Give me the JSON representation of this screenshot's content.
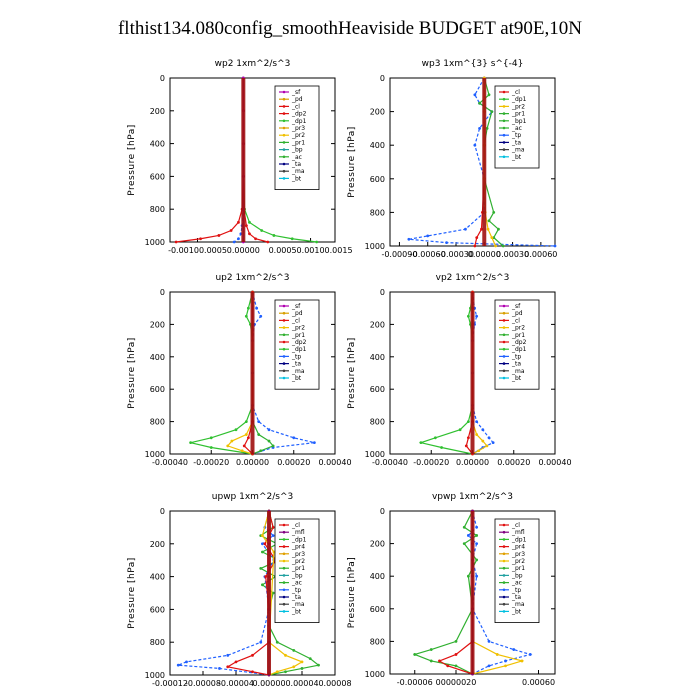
{
  "page_title": "flthist134.080config_smoothHeaviside  BUDGET at90E,10N",
  "colors": {
    "sf": "#b000b0",
    "pd": "#d8a000",
    "cl": "#e01010",
    "dp2": "#e01010",
    "dp1": "#30c030",
    "pr3": "#e0a000",
    "pr2": "#f0c000",
    "pr1": "#30b030",
    "bp": "#20a0a0",
    "bp1": "#30b030",
    "ac": "#30b030",
    "tp": "#2060ff",
    "ta": "#000080",
    "ma": "#404040",
    "bt": "#00c0e0",
    "mfl": "#800080",
    "pr4": "#e01010",
    "sum": "#a01010"
  },
  "chart_data": [
    {
      "type": "line",
      "title": "wp2   1xm^2/s^3",
      "ylabel": "Pressure [hPa]",
      "ylim": [
        1000,
        0
      ],
      "yticks": [
        0,
        200,
        400,
        600,
        800,
        1000
      ],
      "xlim": [
        -0.0012,
        0.0015
      ],
      "xtick_labels": [
        "-0.00100.0005",
        "0.00000",
        "0.00050.00100.0015"
      ],
      "xtick_values": [
        -0.00075,
        0.0,
        0.0011
      ],
      "legend": [
        "_sf",
        "_pd",
        "_cl",
        "_dp2",
        "_dp1",
        "_pr3",
        "_pr2",
        "_pr1",
        "_bp",
        "_ac",
        "_ta",
        "_ma",
        "_bt"
      ],
      "legend_place": "top-right",
      "series": [
        {
          "key": "dp1",
          "p": [
            0,
            200,
            400,
            600,
            800,
            880,
            930,
            960,
            980,
            1000
          ],
          "v": [
            0,
            0,
            0,
            0,
            2e-05,
            0.0001,
            0.0003,
            0.0005,
            0.0008,
            0.0012
          ]
        },
        {
          "key": "cl",
          "p": [
            0,
            200,
            400,
            600,
            800,
            880,
            930,
            960,
            980,
            1000
          ],
          "v": [
            0,
            0,
            0,
            0,
            -2e-05,
            -8e-05,
            -0.0002,
            -0.0004,
            -0.0007,
            -0.0011
          ]
        },
        {
          "key": "dp2",
          "p": [
            0,
            200,
            400,
            600,
            800,
            900,
            950,
            980,
            1000
          ],
          "v": [
            0,
            0,
            0,
            0,
            1e-05,
            5e-05,
            0.0001,
            0.0002,
            0.0004
          ]
        },
        {
          "key": "tp",
          "p": [
            0,
            200,
            400,
            600,
            800,
            900,
            950,
            980,
            1000
          ],
          "v": [
            0,
            0,
            0,
            0,
            0,
            -2e-05,
            -4e-05,
            -8e-05,
            -0.00015
          ]
        },
        {
          "key": "sf",
          "p": [
            0,
            200,
            400,
            600,
            800,
            1000
          ],
          "v": [
            0,
            0,
            0,
            0,
            0,
            0
          ]
        }
      ]
    },
    {
      "type": "line",
      "title": "wp3   1xm^{3} s^{-4}",
      "ylabel": "Pressure [hPa]",
      "ylim": [
        1000,
        0
      ],
      "yticks": [
        0,
        200,
        400,
        600,
        800,
        1000
      ],
      "xlim": [
        -0.001,
        0.00075
      ],
      "xtick_labels": [
        "-0.00090",
        "-0.00060",
        "-0.00030",
        "0.00000",
        "0.00030",
        "0.00060"
      ],
      "xtick_values": [
        -0.0009,
        -0.0006,
        -0.0003,
        0.0,
        0.0003,
        0.0006
      ],
      "legend": [
        "_cl",
        "_dp1",
        "_pr2",
        "_pr1",
        "_bp1",
        "_ac",
        "_tp",
        "_ta",
        "_ma",
        "_bt"
      ],
      "legend_place": "top-right",
      "series": [
        {
          "key": "tp",
          "p": [
            0,
            100,
            150,
            200,
            300,
            400,
            600,
            800,
            900,
            940,
            960,
            980,
            1000
          ],
          "v": [
            0,
            -0.0001,
            -5e-05,
            8e-05,
            -5e-05,
            -0.0001,
            0,
            0,
            -0.0002,
            -0.0006,
            -0.0008,
            -0.0004,
            0.00075
          ]
        },
        {
          "key": "ac",
          "p": [
            0,
            100,
            150,
            200,
            300,
            400,
            600,
            800,
            850,
            900,
            950,
            1000
          ],
          "v": [
            0,
            5e-05,
            -5e-05,
            8e-05,
            3e-05,
            0,
            0,
            0.0001,
            5e-05,
            0.00015,
            0.0001,
            0.0002
          ]
        },
        {
          "key": "cl",
          "p": [
            0,
            200,
            400,
            600,
            800,
            900,
            950,
            1000
          ],
          "v": [
            0,
            0,
            0,
            0,
            -2e-05,
            -3e-05,
            -8e-05,
            -0.0001
          ]
        },
        {
          "key": "pr2",
          "p": [
            0,
            200,
            400,
            600,
            800,
            900,
            950,
            1000
          ],
          "v": [
            0,
            0,
            0,
            0,
            1e-05,
            4e-05,
            8e-05,
            0.00012
          ]
        }
      ]
    },
    {
      "type": "line",
      "title": "up2   1xm^2/s^3",
      "ylabel": "Pressure [hPa]",
      "ylim": [
        1000,
        0
      ],
      "yticks": [
        0,
        200,
        400,
        600,
        800,
        1000
      ],
      "xlim": [
        -0.0004,
        0.0004
      ],
      "xtick_labels": [
        "-0.00040",
        "-0.00020",
        "0.00000",
        "0.00020",
        "0.00040"
      ],
      "xtick_values": [
        -0.0004,
        -0.0002,
        0.0,
        0.0002,
        0.0004
      ],
      "legend": [
        "_sf",
        "_pd",
        "_cl",
        "_pr2",
        "_pr1",
        "_dp2",
        "_dp1",
        "_tp",
        "_ta",
        "_ma",
        "_bt"
      ],
      "legend_place": "top-right",
      "series": [
        {
          "key": "dp1",
          "p": [
            0,
            100,
            150,
            200,
            300,
            500,
            700,
            800,
            850,
            900,
            930,
            960,
            1000
          ],
          "v": [
            0,
            -2e-05,
            -3e-05,
            -1e-05,
            0,
            0,
            0,
            -3e-05,
            -8e-05,
            -0.0002,
            -0.0003,
            -0.0002,
            0
          ]
        },
        {
          "key": "tp",
          "p": [
            0,
            100,
            150,
            200,
            300,
            500,
            700,
            800,
            850,
            900,
            930,
            960,
            1000
          ],
          "v": [
            0,
            2e-05,
            4e-05,
            1e-05,
            0,
            0,
            0,
            3e-05,
            8e-05,
            0.0002,
            0.0003,
            0.0001,
            0
          ]
        },
        {
          "key": "pr2",
          "p": [
            0,
            800,
            880,
            920,
            950,
            980,
            1000
          ],
          "v": [
            0,
            0,
            -3e-05,
            -0.0001,
            -0.00012,
            -5e-05,
            0
          ]
        },
        {
          "key": "pr1",
          "p": [
            0,
            800,
            880,
            920,
            950,
            980,
            1000
          ],
          "v": [
            0,
            0,
            3e-05,
            8e-05,
            0.0001,
            4e-05,
            0
          ]
        },
        {
          "key": "cl",
          "p": [
            0,
            800,
            900,
            950,
            1000
          ],
          "v": [
            0,
            0,
            -2e-05,
            -4e-05,
            0
          ]
        }
      ]
    },
    {
      "type": "line",
      "title": "vp2   1xm^2/s^3",
      "ylabel": "Pressure [hPa]",
      "ylim": [
        1000,
        0
      ],
      "yticks": [
        0,
        200,
        400,
        600,
        800,
        1000
      ],
      "xlim": [
        -0.0004,
        0.0004
      ],
      "xtick_labels": [
        "-0.00040",
        "-0.00020",
        "0.00000",
        "0.00020",
        "0.00040"
      ],
      "xtick_values": [
        -0.0004,
        -0.0002,
        0.0,
        0.0002,
        0.0004
      ],
      "legend": [
        "_sf",
        "_pd",
        "_cl",
        "_pr2",
        "_pr1",
        "_dp2",
        "_dp1",
        "_tp",
        "_ta",
        "_ma",
        "_bt"
      ],
      "legend_place": "top-right",
      "series": [
        {
          "key": "dp1",
          "p": [
            0,
            100,
            150,
            200,
            300,
            500,
            700,
            800,
            850,
            900,
            930,
            960,
            1000
          ],
          "v": [
            0,
            -1e-05,
            -2e-05,
            -1e-05,
            0,
            0,
            0,
            -2e-05,
            -6e-05,
            -0.00018,
            -0.00025,
            -0.00015,
            0
          ]
        },
        {
          "key": "tp",
          "p": [
            0,
            100,
            150,
            200,
            300,
            500,
            700,
            800,
            850,
            900,
            930,
            960,
            1000
          ],
          "v": [
            0,
            1e-05,
            2e-05,
            1e-05,
            0,
            0,
            0,
            2e-05,
            5e-05,
            8e-05,
            0.0001,
            5e-05,
            0
          ]
        },
        {
          "key": "pr2",
          "p": [
            0,
            800,
            880,
            920,
            950,
            980,
            1000
          ],
          "v": [
            0,
            0,
            2e-05,
            5e-05,
            7e-05,
            3e-05,
            0
          ]
        },
        {
          "key": "cl",
          "p": [
            0,
            800,
            900,
            950,
            1000
          ],
          "v": [
            0,
            0,
            -2e-05,
            -3e-05,
            0
          ]
        }
      ]
    },
    {
      "type": "line",
      "title": "upwp   1xm^2/s^3",
      "ylabel": "Pressure [hPa]",
      "ylim": [
        1000,
        0
      ],
      "yticks": [
        0,
        200,
        400,
        600,
        800,
        1000
      ],
      "xlim": [
        -0.00012,
        8e-05
      ],
      "xtick_labels": [
        "-0.00012",
        "-0.00008",
        "-0.00004",
        "0.00000",
        "0.00004",
        "0.00008"
      ],
      "xtick_values": [
        -0.00012,
        -8e-05,
        -4e-05,
        0.0,
        4e-05,
        8e-05
      ],
      "legend": [
        "_cl",
        "_mfl",
        "_dp1",
        "_pr4",
        "_pr3",
        "_pr2",
        "_pr1",
        "_bp",
        "_ac",
        "_tp",
        "_ta",
        "_ma",
        "_bt"
      ],
      "legend_place": "top-right",
      "series": [
        {
          "key": "pr1",
          "p": [
            0,
            100,
            150,
            200,
            250,
            300,
            350,
            400,
            450,
            500,
            600,
            700,
            800,
            850,
            900,
            940,
            960,
            980,
            1000
          ],
          "v": [
            0,
            5e-06,
            -1e-05,
            1e-05,
            -8e-06,
            1.2e-05,
            -1e-05,
            8e-06,
            -8e-06,
            5e-06,
            0,
            0,
            1e-05,
            3e-05,
            5e-05,
            6e-05,
            4e-05,
            2e-05,
            0
          ]
        },
        {
          "key": "tp",
          "p": [
            0,
            100,
            150,
            200,
            300,
            400,
            600,
            800,
            880,
            920,
            940,
            960,
            1000
          ],
          "v": [
            0,
            -5e-06,
            5e-06,
            -8e-06,
            6e-06,
            -5e-06,
            0,
            -1e-05,
            -5e-05,
            -0.0001,
            -0.00011,
            -6e-05,
            0
          ]
        },
        {
          "key": "cl",
          "p": [
            0,
            100,
            200,
            300,
            400,
            600,
            800,
            880,
            920,
            950,
            980,
            1000
          ],
          "v": [
            0,
            5e-06,
            -5e-06,
            8e-06,
            -4e-06,
            0,
            0,
            -2e-05,
            -4e-05,
            -5e-05,
            -2e-05,
            0
          ]
        },
        {
          "key": "pr2",
          "p": [
            0,
            150,
            250,
            800,
            880,
            920,
            950,
            980,
            1000
          ],
          "v": [
            0,
            -8e-06,
            6e-06,
            0,
            2e-05,
            4e-05,
            3e-05,
            1e-05,
            0
          ]
        },
        {
          "key": "mfl",
          "p": [
            0,
            200,
            400,
            600,
            800,
            1000
          ],
          "v": [
            0,
            0,
            0,
            0,
            0,
            0
          ]
        }
      ]
    },
    {
      "type": "line",
      "title": "vpwp   1xm^2/s^3",
      "ylabel": "Pressure [hPa]",
      "ylim": [
        1000,
        0
      ],
      "yticks": [
        0,
        200,
        400,
        600,
        800,
        1000
      ],
      "xlim": [
        -0.0001,
        0.0001
      ],
      "xtick_labels": [
        "-0.00006",
        "00000020",
        "0.00060"
      ],
      "xtick_values": [
        -7e-05,
        -2e-05,
        8e-05
      ],
      "legend": [
        "_cl",
        "_mfl",
        "_dp1",
        "_pr4",
        "_pr3",
        "_pr2",
        "_pr1",
        "_bp",
        "_ac",
        "_tp",
        "_ta",
        "_ma",
        "_bt"
      ],
      "legend_place": "top-right",
      "series": [
        {
          "key": "pr1",
          "p": [
            0,
            100,
            150,
            200,
            300,
            400,
            600,
            800,
            850,
            880,
            920,
            950,
            1000
          ],
          "v": [
            0,
            -1e-05,
            5e-06,
            -1e-05,
            5e-06,
            -5e-06,
            0,
            -2e-05,
            -5e-05,
            -7e-05,
            -5e-05,
            -2e-05,
            0
          ]
        },
        {
          "key": "tp",
          "p": [
            0,
            100,
            150,
            200,
            300,
            400,
            600,
            800,
            850,
            880,
            920,
            950,
            1000
          ],
          "v": [
            0,
            5e-06,
            -5e-06,
            5e-06,
            0,
            5e-06,
            0,
            2e-05,
            5e-05,
            7e-05,
            4e-05,
            2e-05,
            0
          ]
        },
        {
          "key": "pr2",
          "p": [
            0,
            800,
            880,
            920,
            950,
            1000
          ],
          "v": [
            0,
            0,
            3e-05,
            6e-05,
            4e-05,
            0
          ]
        },
        {
          "key": "cl",
          "p": [
            0,
            800,
            880,
            920,
            950,
            1000
          ],
          "v": [
            0,
            0,
            -2e-05,
            -4e-05,
            -3e-05,
            0
          ]
        },
        {
          "key": "mfl",
          "p": [
            0,
            200,
            400,
            600,
            800,
            1000
          ],
          "v": [
            0,
            0,
            0,
            0,
            0,
            0
          ]
        }
      ]
    }
  ]
}
